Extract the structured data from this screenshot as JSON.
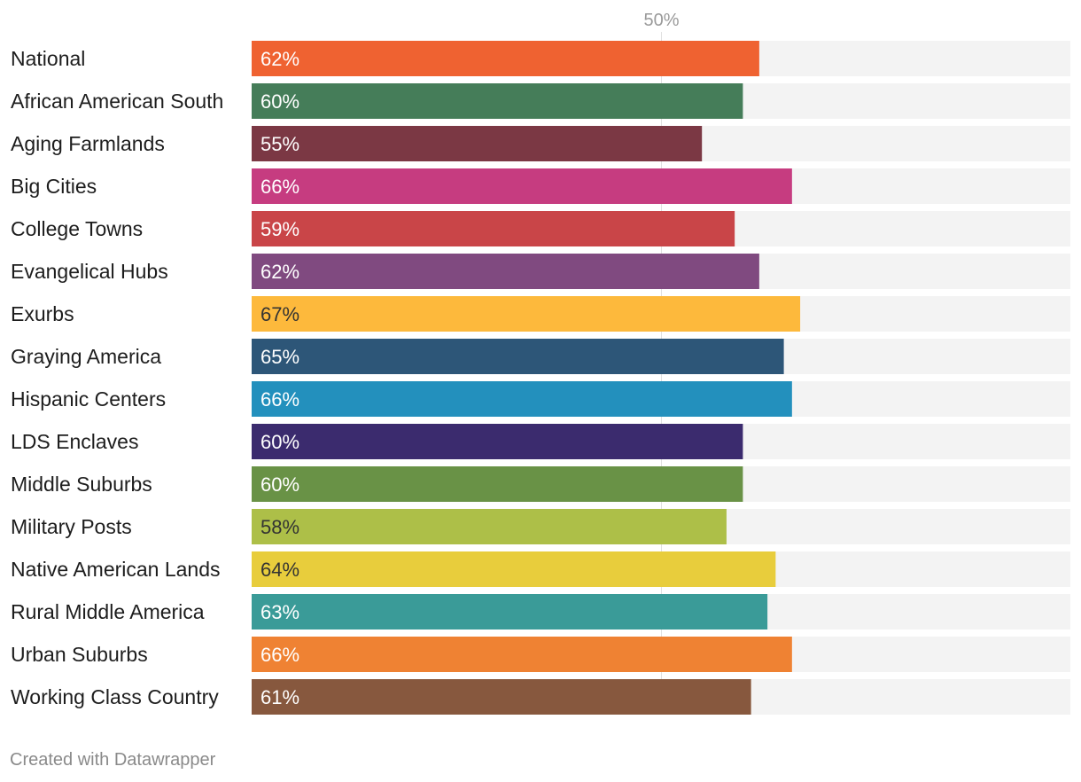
{
  "chart_data": {
    "type": "bar",
    "orientation": "horizontal",
    "categories": [
      "National",
      "African American South",
      "Aging Farmlands",
      "Big Cities",
      "College Towns",
      "Evangelical Hubs",
      "Exurbs",
      "Graying America",
      "Hispanic Centers",
      "LDS Enclaves",
      "Middle Suburbs",
      "Military Posts",
      "Native American Lands",
      "Rural Middle America",
      "Urban Suburbs",
      "Working Class Country"
    ],
    "values": [
      62,
      60,
      55,
      66,
      59,
      62,
      67,
      65,
      66,
      60,
      60,
      58,
      64,
      63,
      66,
      61
    ],
    "value_labels": [
      "62%",
      "60%",
      "55%",
      "66%",
      "59%",
      "62%",
      "67%",
      "65%",
      "66%",
      "60%",
      "60%",
      "58%",
      "64%",
      "63%",
      "66%",
      "61%"
    ],
    "colors": [
      "#ef6231",
      "#457d59",
      "#7b3844",
      "#c63c80",
      "#c94548",
      "#804a80",
      "#fdb93c",
      "#2d5678",
      "#2390bd",
      "#3b2b6e",
      "#699246",
      "#adbf48",
      "#e8cd3c",
      "#3a9b98",
      "#ef8233",
      "#87583e"
    ],
    "label_colors": [
      "#ffffff",
      "#ffffff",
      "#ffffff",
      "#ffffff",
      "#ffffff",
      "#ffffff",
      "#333333",
      "#ffffff",
      "#ffffff",
      "#ffffff",
      "#ffffff",
      "#333333",
      "#333333",
      "#ffffff",
      "#ffffff",
      "#ffffff"
    ],
    "background_bar_color": "#f3f3f3",
    "gridline_color": "#e0e0e0",
    "xlim": [
      0,
      100
    ],
    "ticks": [
      50
    ],
    "tick_labels": [
      "50%"
    ],
    "title": "",
    "xlabel": "",
    "ylabel": ""
  },
  "footer": {
    "credit": "Created with Datawrapper"
  }
}
